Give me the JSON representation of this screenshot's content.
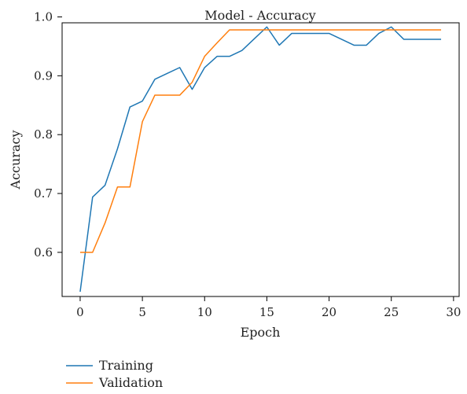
{
  "chart_data": {
    "type": "line",
    "title": "Model - Accuracy",
    "xlabel": "Epoch",
    "ylabel": "Accuracy",
    "xlim": [
      -1.45,
      30.45
    ],
    "ylim": [
      0.525,
      0.99
    ],
    "xticks": [
      0,
      5,
      10,
      15,
      20,
      25,
      30
    ],
    "xtick_labels": [
      "0",
      "5",
      "10",
      "15",
      "20",
      "25",
      "30"
    ],
    "yticks": [
      0.6,
      0.7,
      0.8,
      0.9,
      1.0
    ],
    "ytick_labels": [
      "0.6",
      "0.7",
      "0.8",
      "0.9",
      "1.0"
    ],
    "grid": false,
    "legend_position": "bottom-left, below plot",
    "x": [
      0,
      1,
      2,
      3,
      4,
      5,
      6,
      7,
      8,
      9,
      10,
      11,
      12,
      13,
      14,
      15,
      16,
      17,
      18,
      19,
      20,
      21,
      22,
      23,
      24,
      25,
      26,
      27,
      28,
      29
    ],
    "series": [
      {
        "name": "Training",
        "color": "#1f77b4",
        "values": [
          0.533,
          0.694,
          0.714,
          0.776,
          0.847,
          0.857,
          0.894,
          0.904,
          0.914,
          0.877,
          0.914,
          0.933,
          0.933,
          0.943,
          0.963,
          0.983,
          0.952,
          0.972,
          0.972,
          0.972,
          0.972,
          0.962,
          0.952,
          0.952,
          0.972,
          0.983,
          0.962,
          0.962,
          0.962,
          0.962
        ]
      },
      {
        "name": "Validation",
        "color": "#ff7f0e",
        "values": [
          0.6,
          0.6,
          0.65,
          0.711,
          0.711,
          0.822,
          0.867,
          0.867,
          0.867,
          0.889,
          0.933,
          0.956,
          0.978,
          0.978,
          0.978,
          0.978,
          0.978,
          0.978,
          0.978,
          0.978,
          0.978,
          0.978,
          0.978,
          0.978,
          0.978,
          0.978,
          0.978,
          0.978,
          0.978,
          0.978
        ]
      }
    ]
  }
}
